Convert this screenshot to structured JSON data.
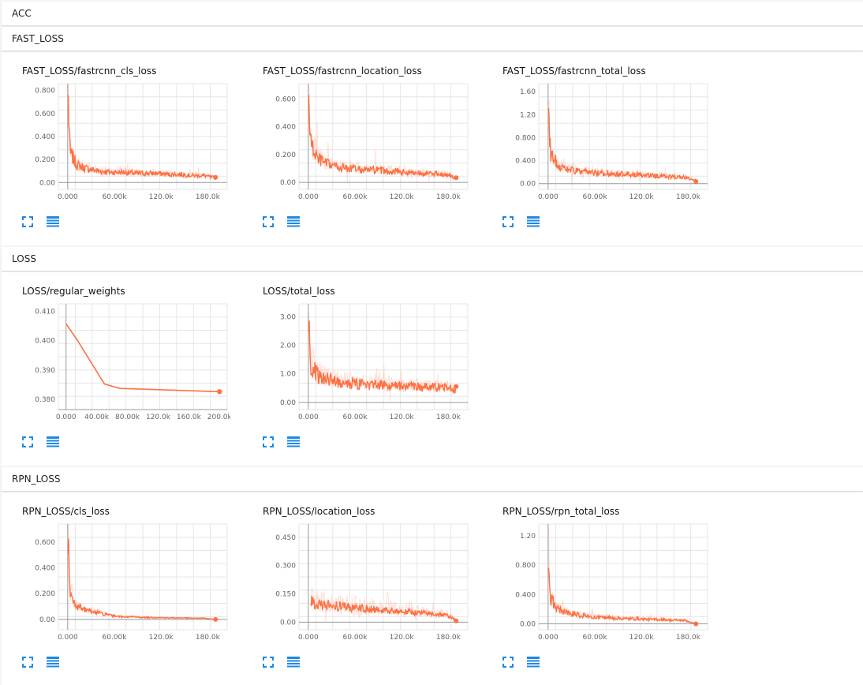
{
  "sections": {
    "acc": "ACC",
    "fast_loss": "FAST_LOSS",
    "loss": "LOSS",
    "rpn_loss": "RPN_LOSS"
  },
  "accent": "#ff7043",
  "chart_data": [
    {
      "type": "line",
      "title": "FAST_LOSS/fastrcnn_cls_loss",
      "xlabel": "",
      "ylabel": "",
      "xlim": [
        -12000,
        205000
      ],
      "ylim": [
        -0.06,
        0.86
      ],
      "xticks": [
        0,
        60000,
        120000,
        180000
      ],
      "xtick_labels": [
        "0.000",
        "60.00k",
        "120.0k",
        "180.0k"
      ],
      "yticks": [
        0,
        0.2,
        0.4,
        0.6,
        0.8
      ],
      "ytick_labels": [
        "0.00",
        "0.200",
        "0.400",
        "0.600",
        "0.800"
      ],
      "series": [
        {
          "smoothed_y": [
            0.72,
            0.26,
            0.15,
            0.12,
            0.1,
            0.09,
            0.09,
            0.08,
            0.08,
            0.08,
            0.07,
            0.07,
            0.06,
            0.06,
            0.04
          ],
          "x": [
            500,
            3000,
            12000,
            25000,
            40000,
            55000,
            70000,
            85000,
            100000,
            115000,
            130000,
            145000,
            160000,
            175000,
            190000
          ]
        }
      ]
    },
    {
      "type": "line",
      "title": "FAST_LOSS/fastrcnn_location_loss",
      "xlabel": "",
      "ylabel": "",
      "xlim": [
        -12000,
        205000
      ],
      "ylim": [
        -0.05,
        0.71
      ],
      "xticks": [
        0,
        60000,
        120000,
        180000
      ],
      "xtick_labels": [
        "0.000",
        "60.00k",
        "120.0k",
        "180.0k"
      ],
      "yticks": [
        0,
        0.2,
        0.4,
        0.6
      ],
      "ytick_labels": [
        "0.00",
        "0.200",
        "0.400",
        "0.600"
      ],
      "series": [
        {
          "smoothed_y": [
            0.62,
            0.28,
            0.17,
            0.13,
            0.11,
            0.1,
            0.09,
            0.09,
            0.08,
            0.08,
            0.07,
            0.07,
            0.06,
            0.06,
            0.03
          ],
          "x": [
            500,
            3000,
            12000,
            25000,
            40000,
            55000,
            70000,
            85000,
            100000,
            115000,
            130000,
            145000,
            160000,
            175000,
            190000
          ]
        }
      ]
    },
    {
      "type": "line",
      "title": "FAST_LOSS/fastrcnn_total_loss",
      "xlabel": "",
      "ylabel": "",
      "xlim": [
        -12000,
        205000
      ],
      "ylim": [
        -0.1,
        1.74
      ],
      "xticks": [
        0,
        60000,
        120000,
        180000
      ],
      "xtick_labels": [
        "0.000",
        "60.00k",
        "120.0k",
        "180.0k"
      ],
      "yticks": [
        0,
        0.4,
        0.8,
        1.2,
        1.6
      ],
      "ytick_labels": [
        "0.00",
        "0.400",
        "0.800",
        "1.20",
        "1.60"
      ],
      "series": [
        {
          "smoothed_y": [
            1.35,
            0.55,
            0.33,
            0.25,
            0.21,
            0.19,
            0.18,
            0.17,
            0.16,
            0.15,
            0.14,
            0.13,
            0.12,
            0.11,
            0.05
          ],
          "x": [
            500,
            3000,
            12000,
            25000,
            40000,
            55000,
            70000,
            85000,
            100000,
            115000,
            130000,
            145000,
            160000,
            175000,
            190000
          ]
        }
      ]
    },
    {
      "type": "line",
      "title": "LOSS/regular_weights",
      "xlabel": "",
      "ylabel": "",
      "xlim": [
        -10000,
        210000
      ],
      "ylim": [
        0.3765,
        0.4125
      ],
      "xticks": [
        0,
        40000,
        80000,
        120000,
        160000,
        200000
      ],
      "xtick_labels": [
        "0.000",
        "40.00k",
        "80.00k",
        "120.0k",
        "160.0k",
        "200.0k"
      ],
      "yticks": [
        0.38,
        0.39,
        0.4,
        0.41
      ],
      "ytick_labels": [
        "0.380",
        "0.390",
        "0.400",
        "0.410"
      ],
      "series": [
        {
          "x": [
            0,
            15000,
            50000,
            70000,
            200000
          ],
          "y": [
            0.4057,
            0.4,
            0.3852,
            0.3837,
            0.3826
          ]
        }
      ]
    },
    {
      "type": "line",
      "title": "LOSS/total_loss",
      "xlabel": "",
      "ylabel": "",
      "xlim": [
        -12000,
        205000
      ],
      "ylim": [
        -0.25,
        3.45
      ],
      "xticks": [
        0,
        60000,
        120000,
        180000
      ],
      "xtick_labels": [
        "0.000",
        "60.00k",
        "120.0k",
        "180.0k"
      ],
      "yticks": [
        0,
        1,
        2,
        3
      ],
      "ytick_labels": [
        "0.00",
        "1.00",
        "2.00",
        "3.00"
      ],
      "series": [
        {
          "smoothed_y": [
            2.8,
            1.3,
            0.95,
            0.8,
            0.72,
            0.67,
            0.64,
            0.61,
            0.59,
            0.57,
            0.55,
            0.54,
            0.53,
            0.52,
            0.45
          ],
          "x": [
            500,
            3000,
            12000,
            25000,
            40000,
            55000,
            70000,
            85000,
            100000,
            115000,
            130000,
            145000,
            160000,
            175000,
            190000
          ]
        }
      ]
    },
    {
      "type": "line",
      "title": "RPN_LOSS/cls_loss",
      "xlabel": "",
      "ylabel": "",
      "xlim": [
        -12000,
        205000
      ],
      "ylim": [
        -0.08,
        0.74
      ],
      "xticks": [
        0,
        60000,
        120000,
        180000
      ],
      "xtick_labels": [
        "0.000",
        "60.00k",
        "120.0k",
        "180.0k"
      ],
      "yticks": [
        0,
        0.2,
        0.4,
        0.6
      ],
      "ytick_labels": [
        "0.00",
        "0.200",
        "0.400",
        "0.600"
      ],
      "series": [
        {
          "smoothed_y": [
            0.6,
            0.2,
            0.1,
            0.07,
            0.05,
            0.03,
            0.02,
            0.02,
            0.015,
            0.015,
            0.012,
            0.012,
            0.01,
            0.01,
            0.0
          ],
          "x": [
            500,
            3000,
            12000,
            25000,
            40000,
            55000,
            70000,
            85000,
            100000,
            115000,
            130000,
            145000,
            160000,
            175000,
            190000
          ]
        }
      ]
    },
    {
      "type": "line",
      "title": "RPN_LOSS/location_loss",
      "xlabel": "",
      "ylabel": "",
      "xlim": [
        -12000,
        205000
      ],
      "ylim": [
        -0.04,
        0.52
      ],
      "xticks": [
        0,
        60000,
        120000,
        180000
      ],
      "xtick_labels": [
        "0.000",
        "60.00k",
        "120.0k",
        "180.0k"
      ],
      "yticks": [
        0,
        0.15,
        0.3,
        0.45
      ],
      "ytick_labels": [
        "0.00",
        "0.150",
        "0.300",
        "0.450"
      ],
      "series": [
        {
          "smoothed_y": [
            0.12,
            0.1,
            0.09,
            0.085,
            0.08,
            0.075,
            0.07,
            0.065,
            0.06,
            0.055,
            0.05,
            0.045,
            0.04,
            0.035,
            0.01
          ],
          "x": [
            3000,
            8000,
            20000,
            35000,
            50000,
            65000,
            80000,
            95000,
            110000,
            125000,
            140000,
            155000,
            170000,
            180000,
            190000
          ]
        }
      ]
    },
    {
      "type": "line",
      "title": "RPN_LOSS/rpn_total_loss",
      "xlabel": "",
      "ylabel": "",
      "xlim": [
        -12000,
        205000
      ],
      "ylim": [
        -0.08,
        1.36
      ],
      "xticks": [
        0,
        60000,
        120000,
        180000
      ],
      "xtick_labels": [
        "0.000",
        "60.00k",
        "120.0k",
        "180.0k"
      ],
      "yticks": [
        0,
        0.4,
        0.8,
        1.2
      ],
      "ytick_labels": [
        "0.00",
        "0.400",
        "0.800",
        "1.20"
      ],
      "series": [
        {
          "smoothed_y": [
            1.0,
            0.35,
            0.2,
            0.15,
            0.12,
            0.1,
            0.09,
            0.08,
            0.07,
            0.07,
            0.06,
            0.06,
            0.05,
            0.05,
            0.0
          ],
          "x": [
            500,
            3000,
            12000,
            25000,
            40000,
            55000,
            70000,
            85000,
            100000,
            115000,
            130000,
            145000,
            160000,
            175000,
            190000
          ]
        }
      ]
    }
  ]
}
